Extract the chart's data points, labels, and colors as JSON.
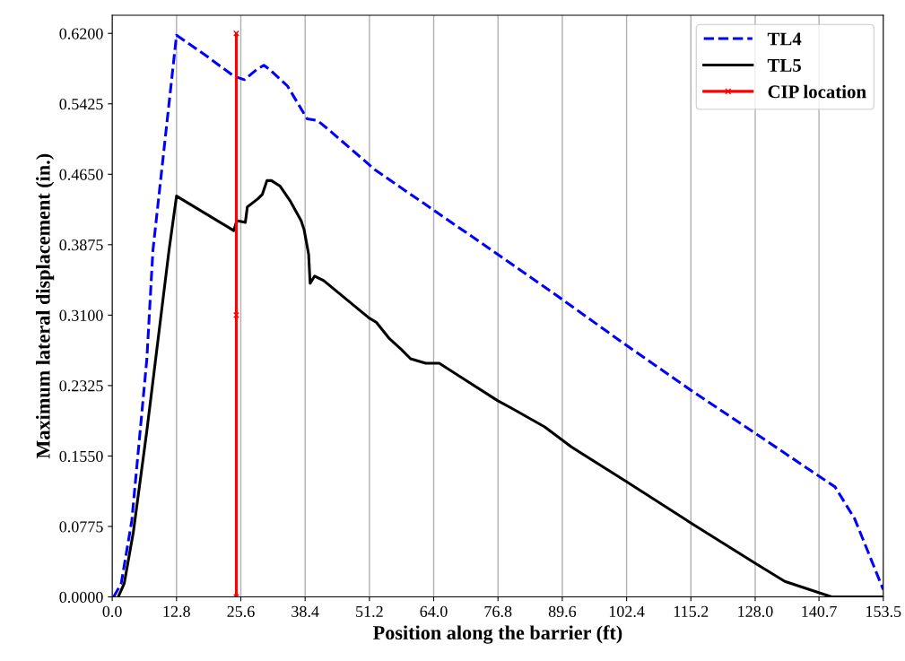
{
  "chart_data": {
    "type": "line",
    "xlabel": "Position along the barrier (ft)",
    "ylabel": "Maximum lateral displacement (in.)",
    "xlim": [
      0,
      153.5
    ],
    "ylim": [
      0,
      0.64
    ],
    "xticks": [
      {
        "value": 0,
        "label": "0.0"
      },
      12.8,
      25.6,
      38.4,
      51.2,
      {
        "value": 64,
        "label": "64.0"
      },
      76.8,
      89.6,
      102.4,
      115.2,
      {
        "value": 128,
        "label": "128.0"
      },
      140.7,
      153.5
    ],
    "yticks": [
      {
        "value": 0,
        "label": "0.0000"
      },
      {
        "value": 0.0775,
        "label": "0.0775"
      },
      {
        "value": 0.155,
        "label": "0.1550"
      },
      {
        "value": 0.2325,
        "label": "0.2325"
      },
      {
        "value": 0.31,
        "label": "0.3100"
      },
      {
        "value": 0.3875,
        "label": "0.3875"
      },
      {
        "value": 0.465,
        "label": "0.4650"
      },
      {
        "value": 0.5425,
        "label": "0.5425"
      },
      {
        "value": 0.62,
        "label": "0.6200"
      }
    ],
    "grid": "x",
    "legend": "top right",
    "series": [
      {
        "name": "TL4",
        "color": "#0000ff",
        "line_style": "dashed",
        "marker": "none",
        "x": [
          0.3,
          1.8,
          3.9,
          6.9,
          8.1,
          12.8,
          18.8,
          24.2,
          26.3,
          28.7,
          30.2,
          31.6,
          34.9,
          38.8,
          40.9,
          43.3,
          52.3,
          76.2,
          89.4,
          102.3,
          115.3,
          128.0,
          143.9,
          147.8,
          153.5
        ],
        "values": [
          0,
          0.015,
          0.084,
          0.262,
          0.381,
          0.618,
          0.595,
          0.573,
          0.569,
          0.58,
          0.585,
          0.579,
          0.562,
          0.526,
          0.524,
          0.513,
          0.47,
          0.379,
          0.328,
          0.277,
          0.227,
          0.18,
          0.121,
          0.086,
          0.008
        ]
      },
      {
        "name": "TL5",
        "color": "#000000",
        "line_style": "solid",
        "marker": "none",
        "x": [
          1.2,
          2.4,
          4.2,
          6.9,
          11.3,
          12.8,
          24.2,
          24.8,
          26.5,
          26.9,
          29.0,
          29.9,
          30.8,
          31.7,
          33.4,
          35.5,
          37.6,
          38.2,
          39.1,
          39.4,
          40.3,
          42.1,
          51.1,
          52.6,
          55.2,
          57.6,
          59.4,
          62.4,
          65.1,
          76.7,
          79.7,
          86.1,
          91.4,
          102.3,
          115.3,
          128.0,
          133.9,
          143.2,
          153.5
        ],
        "values": [
          0,
          0.015,
          0.071,
          0.183,
          0.381,
          0.441,
          0.403,
          0.414,
          0.412,
          0.429,
          0.438,
          0.443,
          0.458,
          0.458,
          0.452,
          0.435,
          0.414,
          0.404,
          0.377,
          0.345,
          0.353,
          0.348,
          0.307,
          0.302,
          0.284,
          0.272,
          0.262,
          0.257,
          0.257,
          0.216,
          0.207,
          0.187,
          0.165,
          0.127,
          0.081,
          0.037,
          0.017,
          0,
          0
        ]
      },
      {
        "name": "CIP location",
        "color": "#ff0000",
        "line_style": "solid",
        "marker": "cross",
        "x": [
          24.7,
          24.7,
          24.7
        ],
        "values": [
          0,
          0.31,
          0.62
        ]
      }
    ]
  }
}
